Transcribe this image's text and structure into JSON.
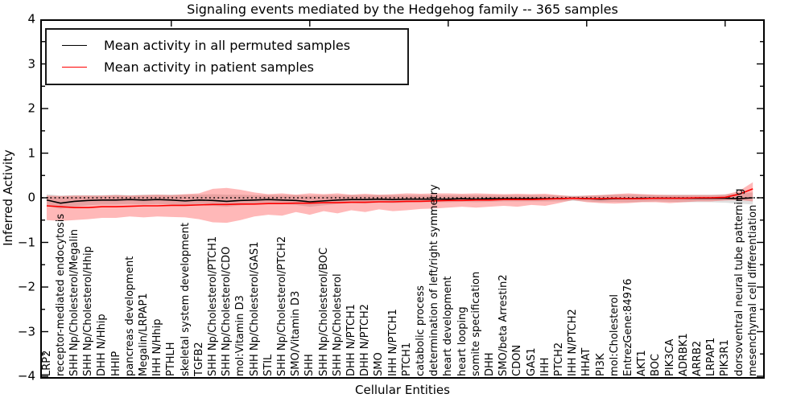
{
  "title": "Signaling events mediated by the Hedgehog family -- 365 samples",
  "legend": {
    "items": [
      {
        "label": "Mean activity in all permuted samples",
        "color": "#000000"
      },
      {
        "label": "Mean activity in patient samples",
        "color": "#ff0000"
      }
    ]
  },
  "axes": {
    "xlabel": "Cellular Entities",
    "ylabel": "Inferred Activity",
    "ylim": [
      -4,
      4
    ],
    "yticks": [
      {
        "value": -4,
        "label": "−4"
      },
      {
        "value": -3,
        "label": "−3"
      },
      {
        "value": -2,
        "label": "−2"
      },
      {
        "value": -1,
        "label": "−1"
      },
      {
        "value": 0,
        "label": "0"
      },
      {
        "value": 1,
        "label": "1"
      },
      {
        "value": 2,
        "label": "2"
      },
      {
        "value": 3,
        "label": "3"
      },
      {
        "value": 4,
        "label": "4"
      }
    ]
  },
  "chart_data": {
    "type": "line",
    "title": "Signaling events mediated by the Hedgehog family -- 365 samples",
    "xlabel": "Cellular Entities",
    "ylabel": "Inferred Activity",
    "ylim": [
      -4,
      4
    ],
    "legend_position": "upper left",
    "grid": false,
    "reference_line": {
      "y": 0,
      "style": "dotted",
      "color": "#000000"
    },
    "categories": [
      "LRP2",
      "receptor-mediated endocytosis",
      "SHH Np/Cholesterol/Megalin",
      "SHH Np/Cholesterol/Hhip",
      "DHH N/Hhip",
      "HHIP",
      "pancreas development",
      "Megalin/LRPAP1",
      "IHH N/Hhip",
      "PTHLH",
      "skeletal system development",
      "TGFB2",
      "SHH Np/Cholesterol/PTCH1",
      "SHH Np/Cholesterol/CDO",
      "mol:Vitamin D3",
      "SHH Np/Cholesterol/GAS1",
      "STIL",
      "SHH Np/Cholesterol/PTCH2",
      "SMO/Vitamin D3",
      "SHH",
      "SHH Np/Cholesterol/BOC",
      "SHH Np/Cholesterol",
      "DHH N/PTCH1",
      "DHH N/PTCH2",
      "SMO",
      "IHH N/PTCH1",
      "PTCH1",
      "catabolic process",
      "determination of left/right symmetry",
      "heart development",
      "heart looping",
      "somite specification",
      "DHH",
      "SMO/beta Arrestin2",
      "CDON",
      "GAS1",
      "IHH",
      "PTCH2",
      "IHH N/PTCH2",
      "HHAT",
      "PI3K",
      "mol:Cholesterol",
      "EntrezGene:84976",
      "AKT1",
      "BOC",
      "PIK3CA",
      "ADRBK1",
      "ARRB2",
      "LRPAP1",
      "PIK3R1",
      "dorsoventral neural tube patterning",
      "mesenchymal cell differentiation"
    ],
    "series": [
      {
        "name": "Mean activity in all permuted samples",
        "color": "#000000",
        "band_color": "#999999",
        "band_opacity": 0.3,
        "values": [
          -0.05,
          -0.12,
          -0.08,
          -0.06,
          -0.05,
          -0.05,
          -0.04,
          -0.05,
          -0.04,
          -0.05,
          -0.07,
          -0.05,
          -0.06,
          -0.08,
          -0.06,
          -0.05,
          -0.04,
          -0.05,
          -0.06,
          -0.09,
          -0.07,
          -0.05,
          -0.04,
          -0.04,
          -0.03,
          -0.04,
          -0.03,
          -0.03,
          -0.03,
          -0.03,
          -0.02,
          -0.03,
          -0.02,
          -0.02,
          -0.02,
          -0.02,
          -0.02,
          -0.02,
          -0.01,
          -0.02,
          -0.03,
          -0.02,
          -0.02,
          -0.01,
          -0.01,
          -0.01,
          -0.01,
          -0.01,
          -0.01,
          -0.01,
          -0.02,
          0.0
        ],
        "band_upper": [
          0.08,
          0.05,
          0.06,
          0.06,
          0.06,
          0.07,
          0.06,
          0.07,
          0.07,
          0.07,
          0.07,
          0.07,
          0.08,
          0.07,
          0.07,
          0.06,
          0.06,
          0.06,
          0.06,
          0.05,
          0.06,
          0.06,
          0.06,
          0.06,
          0.06,
          0.06,
          0.06,
          0.06,
          0.06,
          0.06,
          0.06,
          0.06,
          0.06,
          0.06,
          0.06,
          0.06,
          0.06,
          0.05,
          0.05,
          0.05,
          0.06,
          0.07,
          0.07,
          0.07,
          0.06,
          0.07,
          0.07,
          0.07,
          0.07,
          0.08,
          0.1,
          0.12
        ],
        "band_lower": [
          -0.18,
          -0.25,
          -0.2,
          -0.17,
          -0.15,
          -0.15,
          -0.14,
          -0.15,
          -0.14,
          -0.15,
          -0.17,
          -0.16,
          -0.18,
          -0.2,
          -0.17,
          -0.15,
          -0.13,
          -0.14,
          -0.16,
          -0.2,
          -0.17,
          -0.14,
          -0.12,
          -0.13,
          -0.11,
          -0.12,
          -0.11,
          -0.1,
          -0.1,
          -0.1,
          -0.09,
          -0.1,
          -0.09,
          -0.08,
          -0.08,
          -0.08,
          -0.08,
          -0.08,
          -0.07,
          -0.08,
          -0.1,
          -0.09,
          -0.1,
          -0.09,
          -0.08,
          -0.09,
          -0.1,
          -0.1,
          -0.1,
          -0.11,
          -0.13,
          -0.15
        ]
      },
      {
        "name": "Mean activity in patient samples",
        "color": "#ff0000",
        "band_color": "#ff0000",
        "band_opacity": 0.28,
        "values": [
          -0.18,
          -0.2,
          -0.22,
          -0.22,
          -0.2,
          -0.2,
          -0.19,
          -0.18,
          -0.18,
          -0.17,
          -0.17,
          -0.16,
          -0.15,
          -0.15,
          -0.14,
          -0.14,
          -0.13,
          -0.13,
          -0.12,
          -0.12,
          -0.11,
          -0.11,
          -0.1,
          -0.1,
          -0.09,
          -0.09,
          -0.08,
          -0.08,
          -0.07,
          -0.06,
          -0.06,
          -0.05,
          -0.05,
          -0.04,
          -0.04,
          -0.04,
          -0.03,
          -0.02,
          -0.01,
          -0.02,
          -0.02,
          -0.01,
          -0.02,
          -0.02,
          -0.01,
          -0.01,
          -0.01,
          0.0,
          0.0,
          0.01,
          0.08,
          0.2
        ],
        "band_upper": [
          0.05,
          0.04,
          0.05,
          0.05,
          0.05,
          0.06,
          0.05,
          0.06,
          0.07,
          0.06,
          0.08,
          0.1,
          0.2,
          0.22,
          0.18,
          0.12,
          0.08,
          0.1,
          0.07,
          0.1,
          0.08,
          0.1,
          0.07,
          0.09,
          0.07,
          0.08,
          0.1,
          0.09,
          0.1,
          0.1,
          0.09,
          0.1,
          0.09,
          0.08,
          0.09,
          0.08,
          0.09,
          0.06,
          0.03,
          0.05,
          0.06,
          0.08,
          0.1,
          0.08,
          0.07,
          0.06,
          0.06,
          0.06,
          0.06,
          0.07,
          0.15,
          0.35
        ],
        "band_lower": [
          -0.5,
          -0.52,
          -0.5,
          -0.48,
          -0.45,
          -0.45,
          -0.42,
          -0.44,
          -0.42,
          -0.43,
          -0.44,
          -0.48,
          -0.55,
          -0.56,
          -0.5,
          -0.42,
          -0.38,
          -0.4,
          -0.32,
          -0.38,
          -0.3,
          -0.35,
          -0.28,
          -0.32,
          -0.26,
          -0.3,
          -0.28,
          -0.25,
          -0.24,
          -0.22,
          -0.2,
          -0.22,
          -0.2,
          -0.18,
          -0.2,
          -0.16,
          -0.18,
          -0.12,
          -0.05,
          -0.1,
          -0.12,
          -0.13,
          -0.12,
          -0.1,
          -0.1,
          -0.12,
          -0.1,
          -0.08,
          -0.08,
          -0.06,
          -0.05,
          -0.08
        ]
      }
    ]
  }
}
